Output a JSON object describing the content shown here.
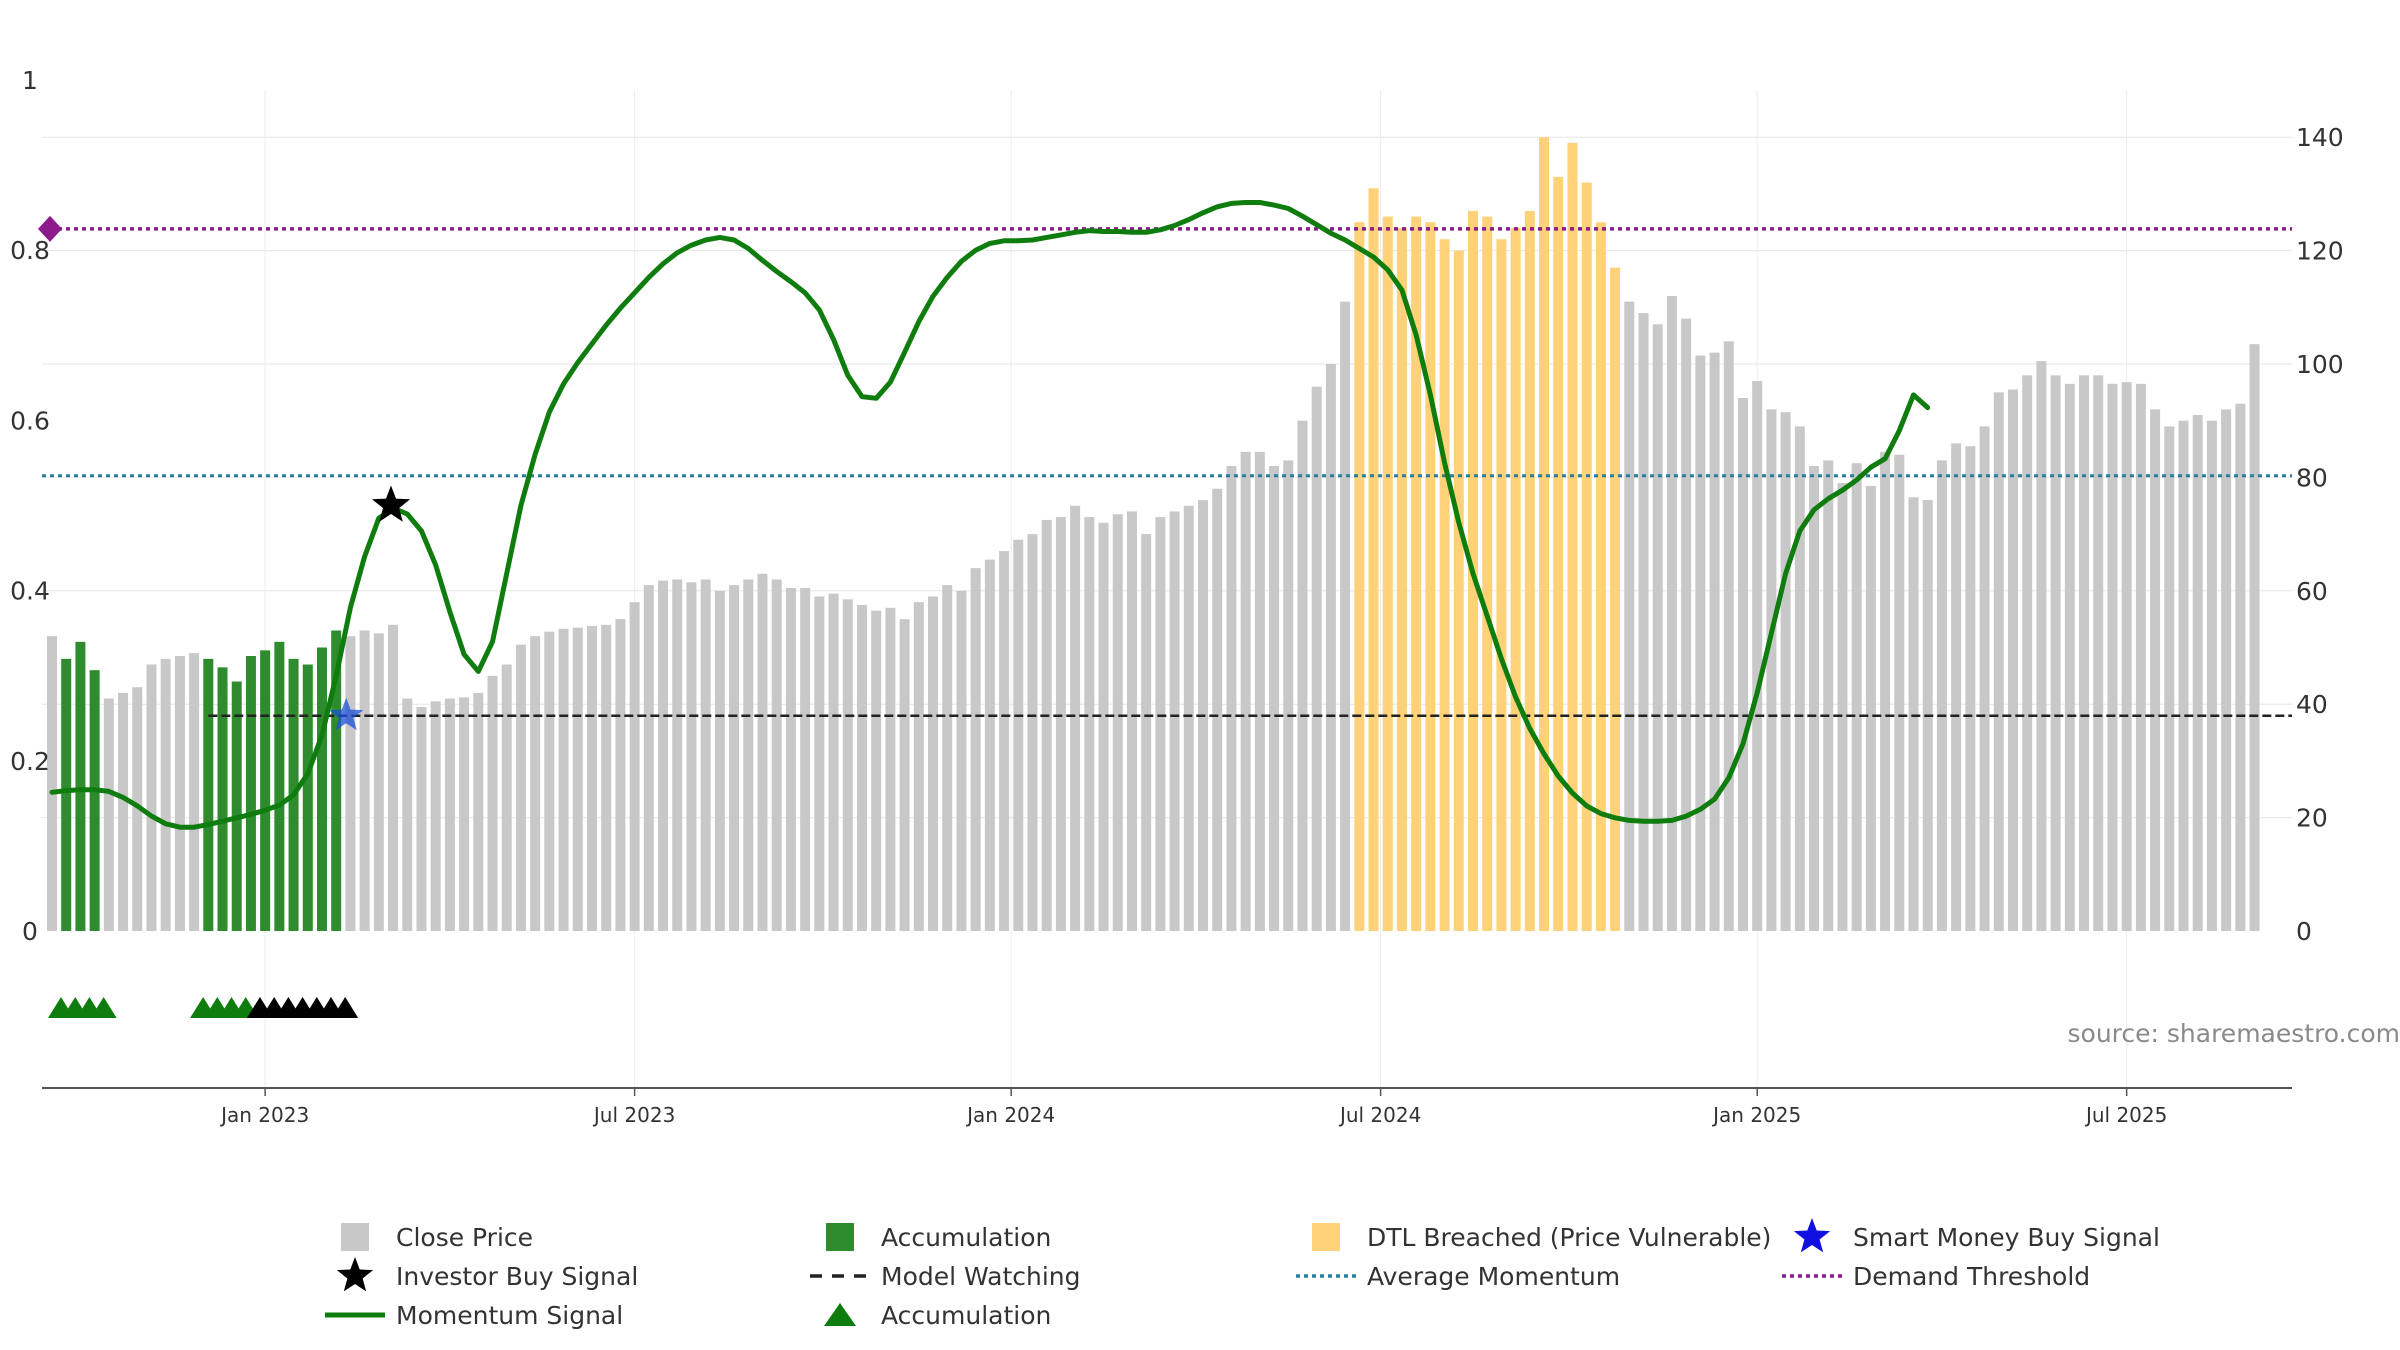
{
  "chart_data": {
    "type": "bar",
    "title": "",
    "source_label": "source: sharemaestro.com",
    "y_left": {
      "ticks": [
        "1",
        "0.8",
        "0.6",
        "0.4",
        "0.2",
        "0"
      ],
      "range": [
        0,
        1
      ]
    },
    "y_right": {
      "ticks": [
        "140",
        "120",
        "100",
        "80",
        "60",
        "40",
        "20",
        "0"
      ],
      "range": [
        0,
        150
      ]
    },
    "x_ticks": [
      {
        "label": "Jan 2023",
        "index": 15
      },
      {
        "label": "Jul 2023",
        "index": 41
      },
      {
        "label": "Jan 2024",
        "index": 67.5
      },
      {
        "label": "Jul 2024",
        "index": 93.5
      },
      {
        "label": "Jan 2025",
        "index": 120
      },
      {
        "label": "Jul 2025",
        "index": 146
      }
    ],
    "colors": {
      "close": "#c8c8c8",
      "accumulation": "#2e8b2e",
      "dtl": "#ffd27a",
      "momentum": "#0e7d0e",
      "demand": "#8b1a8b",
      "average": "#2b7d9e",
      "watching": "#222222",
      "smart_money": "#1a4fd6"
    },
    "close_price": [
      52,
      48,
      51,
      46,
      41,
      42,
      43,
      47,
      48,
      48.5,
      49,
      48,
      46.5,
      44,
      48.5,
      49.5,
      51,
      48,
      47,
      50,
      53,
      52,
      53,
      52.5,
      54,
      41,
      39.5,
      40.5,
      41,
      41.2,
      42,
      45,
      47,
      50.5,
      52,
      52.8,
      53.3,
      53.5,
      53.8,
      54,
      55,
      58,
      61,
      61.8,
      62,
      61.5,
      62,
      60,
      61,
      62,
      63,
      62,
      60.5,
      60.5,
      59,
      59.5,
      58.5,
      57.5,
      56.5,
      57,
      55,
      58,
      59,
      61,
      60,
      64,
      65.5,
      67,
      69,
      70,
      72.5,
      73,
      75,
      73,
      72,
      73.5,
      74,
      70,
      73,
      74,
      75,
      76,
      78,
      82,
      84.5,
      84.5,
      82,
      83,
      90,
      96,
      100,
      111,
      125,
      131,
      126,
      124,
      126,
      125,
      122,
      120,
      127,
      126,
      122,
      124,
      127,
      140,
      133,
      139,
      132,
      125,
      117,
      111,
      109,
      107,
      112,
      108,
      101.5,
      102,
      104,
      94,
      97,
      92,
      91.5,
      89,
      82,
      83,
      79,
      82.5,
      78.5,
      84.5,
      84,
      76.5,
      76,
      83,
      86,
      85.5,
      89,
      95,
      95.5,
      98,
      100.5,
      98,
      96.5,
      98,
      98,
      96.5,
      96.8,
      96.5,
      92,
      89,
      90,
      91,
      90,
      92,
      93,
      103.5
    ],
    "accumulation_indices": [
      1,
      2,
      3,
      11,
      12,
      13,
      14,
      15,
      16,
      17,
      18,
      19,
      20
    ],
    "dtl_indices": [
      92,
      93,
      94,
      95,
      96,
      97,
      98,
      99,
      100,
      101,
      102,
      103,
      104,
      105,
      106,
      107,
      108,
      109,
      110
    ],
    "momentum_signal": [
      0.163,
      0.165,
      0.166,
      0.166,
      0.164,
      0.157,
      0.147,
      0.135,
      0.126,
      0.122,
      0.122,
      0.125,
      0.129,
      0.133,
      0.137,
      0.142,
      0.148,
      0.16,
      0.185,
      0.23,
      0.3,
      0.38,
      0.44,
      0.485,
      0.497,
      0.49,
      0.47,
      0.43,
      0.375,
      0.325,
      0.305,
      0.34,
      0.42,
      0.5,
      0.56,
      0.61,
      0.643,
      0.668,
      0.69,
      0.712,
      0.732,
      0.75,
      0.768,
      0.784,
      0.797,
      0.806,
      0.812,
      0.815,
      0.812,
      0.802,
      0.788,
      0.775,
      0.763,
      0.75,
      0.73,
      0.695,
      0.653,
      0.628,
      0.626,
      0.645,
      0.68,
      0.716,
      0.746,
      0.768,
      0.787,
      0.8,
      0.808,
      0.811,
      0.811,
      0.812,
      0.815,
      0.818,
      0.821,
      0.823,
      0.822,
      0.822,
      0.821,
      0.821,
      0.824,
      0.829,
      0.836,
      0.844,
      0.851,
      0.855,
      0.856,
      0.856,
      0.853,
      0.849,
      0.84,
      0.83,
      0.82,
      0.812,
      0.802,
      0.792,
      0.777,
      0.753,
      0.7,
      0.63,
      0.55,
      0.48,
      0.42,
      0.37,
      0.32,
      0.275,
      0.238,
      0.208,
      0.182,
      0.162,
      0.147,
      0.138,
      0.133,
      0.13,
      0.129,
      0.129,
      0.13,
      0.135,
      0.143,
      0.155,
      0.18,
      0.22,
      0.28,
      0.35,
      0.42,
      0.47,
      0.495,
      0.508,
      0.518,
      0.53,
      0.545,
      0.555,
      0.588,
      0.63,
      0.615
    ],
    "demand_threshold": 0.825,
    "average_momentum": 0.535,
    "model_watching": {
      "value": 0.253,
      "from_index": 11
    },
    "investor_buy_signal": {
      "index": 24,
      "value": 0.5
    },
    "smart_money_buy_signal": {
      "index": 20,
      "value": 0.253
    },
    "green_triangles": [
      0,
      1,
      2,
      3,
      10,
      11,
      12,
      13
    ],
    "black_triangles": [
      14,
      15,
      16,
      17,
      18,
      19,
      20
    ],
    "legend": [
      {
        "key": "close",
        "label": "Close Price",
        "type": "square"
      },
      {
        "key": "accumulation",
        "label": "Accumulation",
        "type": "square"
      },
      {
        "key": "dtl",
        "label": "DTL Breached (Price Vulnerable)",
        "type": "square"
      },
      {
        "key": "smart_money",
        "label": "Smart Money Buy Signal",
        "type": "star"
      },
      {
        "key": "investor",
        "label": "Investor Buy Signal",
        "type": "star-black"
      },
      {
        "key": "watching",
        "label": "Model Watching",
        "type": "dash"
      },
      {
        "key": "average",
        "label": "Average Momentum",
        "type": "dot"
      },
      {
        "key": "demand",
        "label": "Demand Threshold",
        "type": "dot"
      },
      {
        "key": "momentum",
        "label": "Momentum Signal",
        "type": "line"
      },
      {
        "key": "triangle",
        "label": "Accumulation",
        "type": "triangle"
      }
    ]
  }
}
